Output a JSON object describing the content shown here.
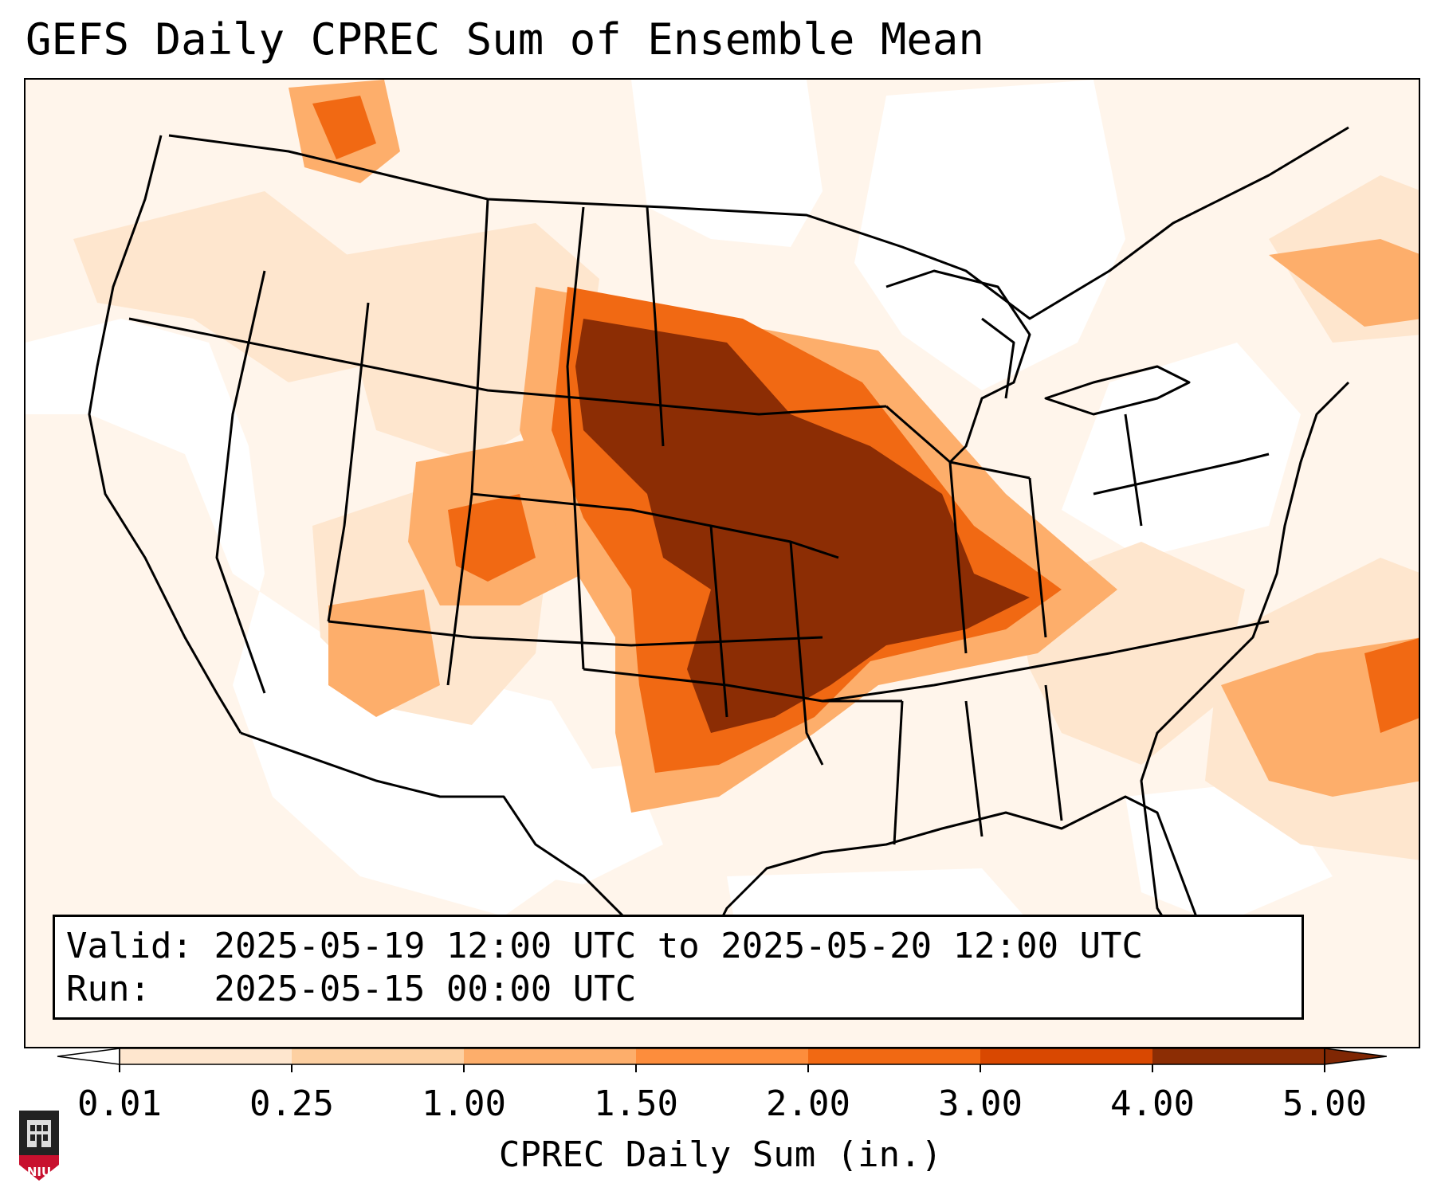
{
  "title": "GEFS Daily CPREC Sum of Ensemble Mean",
  "info": {
    "valid_label": "Valid:",
    "valid_value": "2025-05-19 12:00 UTC to 2025-05-20 12:00 UTC",
    "run_label": "Run:",
    "run_value": "2025-05-15 00:00 UTC"
  },
  "colorbar": {
    "label": "CPREC Daily Sum (in.)",
    "ticks": [
      "0.01",
      "0.25",
      "1.00",
      "1.50",
      "2.00",
      "3.00",
      "4.00",
      "5.00"
    ],
    "colors": [
      "#fff5eb",
      "#fee6ce",
      "#fdd0a2",
      "#fdae6b",
      "#fd8d3c",
      "#f16913",
      "#d94801",
      "#8c2d04"
    ],
    "under_color": "#ffffff",
    "over_color": "#7f2704"
  },
  "logo": {
    "text": "NIU",
    "color": "#c8102e"
  }
}
